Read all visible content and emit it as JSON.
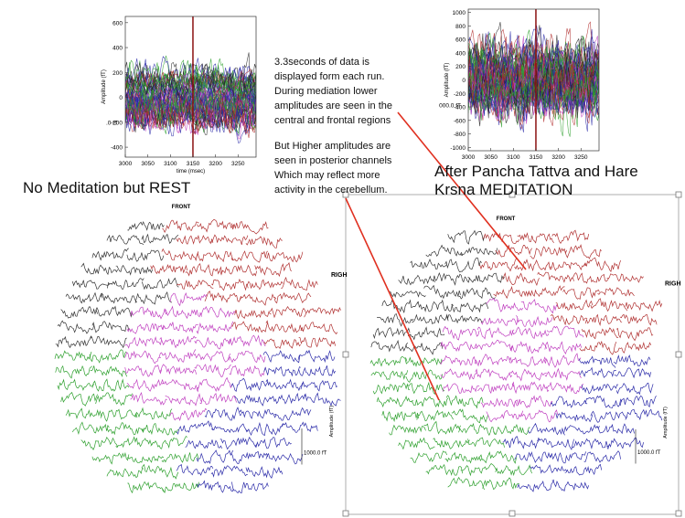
{
  "top_left_plot": {
    "ylabel": "Amplitude (fT)",
    "xlabel": "time (msec)",
    "xlim": [
      3000,
      3290
    ],
    "ylim": [
      -480,
      650
    ],
    "xticks": [
      3000,
      3050,
      3100,
      3150,
      3200,
      3250
    ],
    "yticks": [
      600,
      400,
      200,
      0,
      -200,
      -400
    ],
    "marker_x": 3150,
    "scale_label": ".0 fT"
  },
  "top_right_plot": {
    "ylabel": "Amplitude (fT)",
    "xlim": [
      3000,
      3290
    ],
    "ylim": [
      -1050,
      1050
    ],
    "xticks": [
      3000,
      3050,
      3100,
      3150,
      3200,
      3250
    ],
    "yticks": [
      1000,
      800,
      600,
      400,
      200,
      0,
      -200,
      -400,
      -600,
      -800,
      -1000
    ],
    "marker_x": 3150,
    "scale_label": "000.0 fT"
  },
  "note_1": "3.3seconds of data is displayed form each run. During mediation lower amplitudes are seen in the central and frontal regions",
  "note_2": "But Higher amplitudes are seen in posterior channels Which may reflect more activity in the cerebellum.",
  "left_title": "No Meditation but REST",
  "right_title": "After Pancha Tattva and Hare Krsna MEDITATION",
  "left_topo": {
    "front": "FRONT",
    "right": "RIGH",
    "ylabel": "Amplitude (fT)",
    "scale_label": "1000.0 fT"
  },
  "right_topo": {
    "front": "FRONT",
    "right": "RIGH",
    "ylabel": "Amplitude (fT)",
    "scale_label": "1000.0 fT"
  }
}
